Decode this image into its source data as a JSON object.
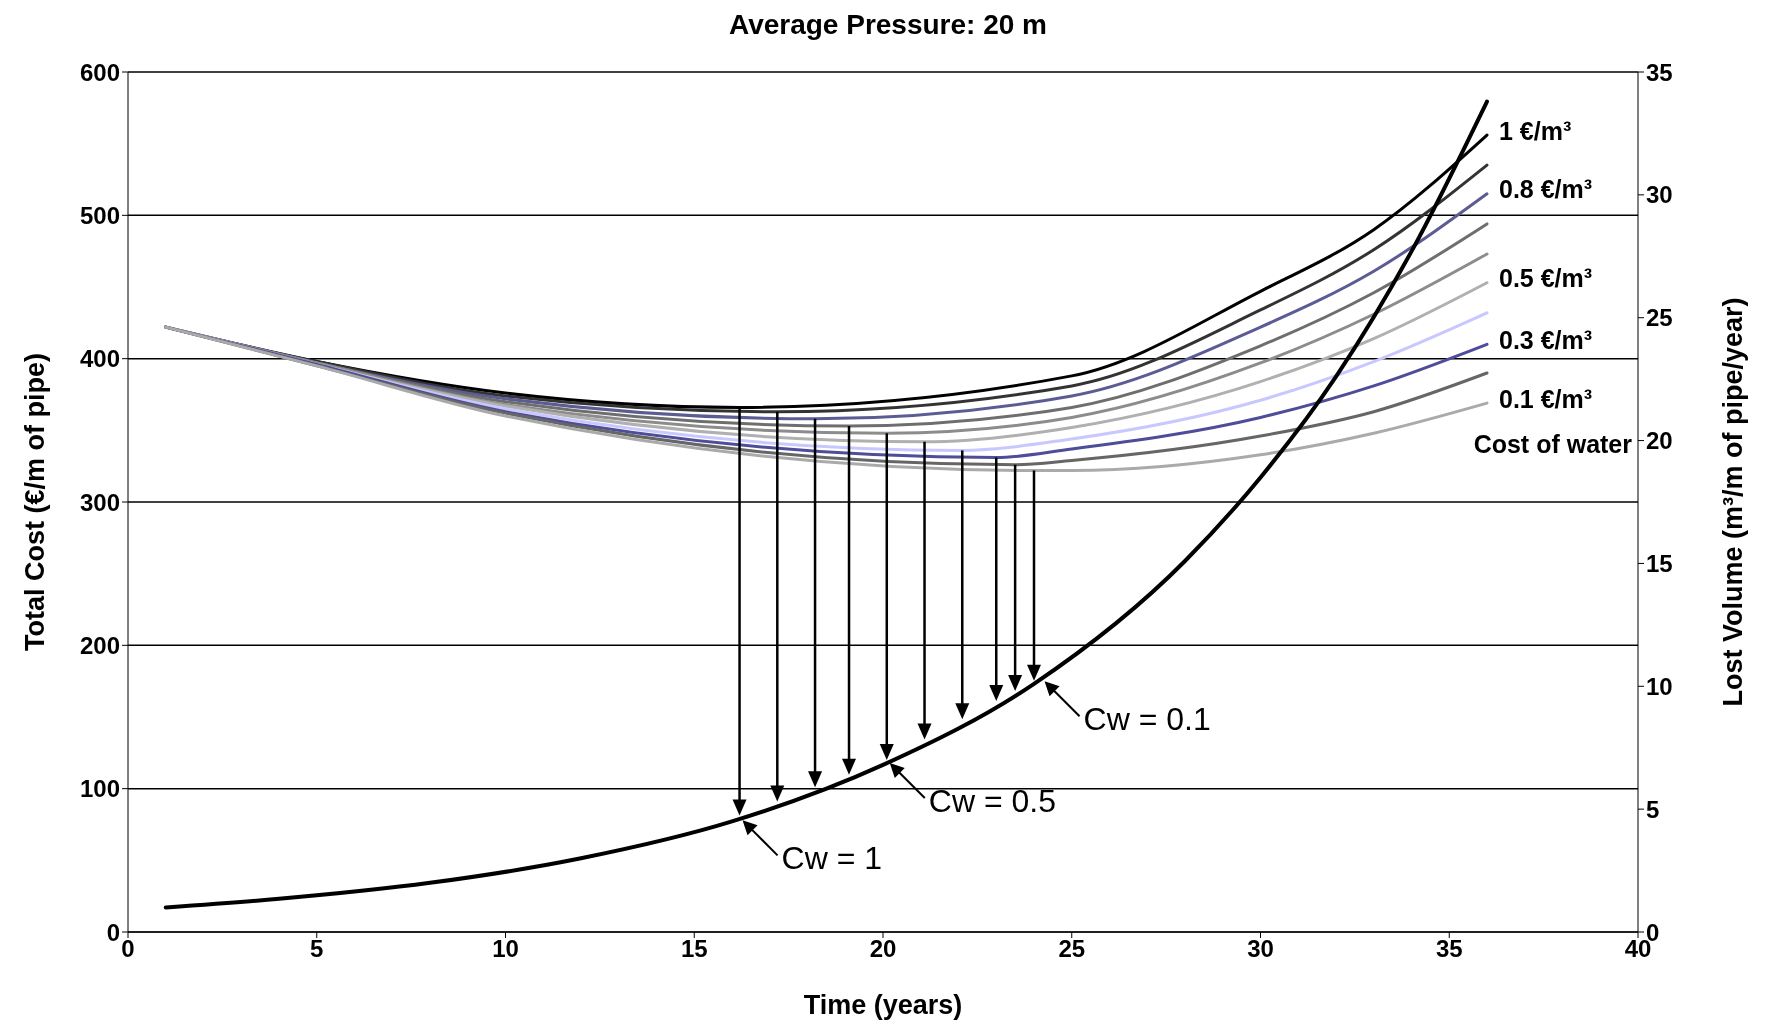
{
  "chart_data": {
    "type": "line",
    "title": "Average Pressure: 20 m",
    "xlabel": "Time (years)",
    "ylabel": "Total Cost (€/m of pipe)",
    "y2label": "Lost Volume (m³/m of pipe/year)",
    "xlim": [
      0,
      40
    ],
    "xticks": [
      0,
      5,
      10,
      15,
      20,
      25,
      30,
      35,
      40
    ],
    "ylim": [
      0,
      600
    ],
    "yticks": [
      0,
      100,
      200,
      300,
      400,
      500,
      600
    ],
    "y2lim": [
      0,
      35
    ],
    "y2ticks": [
      0,
      5,
      10,
      15,
      20,
      25,
      30,
      35
    ],
    "grid": "y",
    "series": [
      {
        "name": "1 €/m³",
        "color": "#000000",
        "x": [
          1,
          5,
          10,
          16.2,
          25,
          30,
          33,
          36
        ],
        "values": [
          422,
          398,
          376,
          366,
          388,
          447,
          490,
          556
        ]
      },
      {
        "color": "#333333",
        "x": [
          1,
          5,
          10,
          17.2,
          25,
          30,
          33,
          36
        ],
        "values": [
          422,
          398,
          374,
          363,
          381,
          434,
          476,
          535
        ]
      },
      {
        "name": "0.8 €/m³",
        "color": "#5c5c94",
        "x": [
          1,
          5,
          10,
          18.2,
          25,
          30,
          33,
          36
        ],
        "values": [
          422,
          397,
          372,
          358,
          374,
          422,
          461,
          515
        ]
      },
      {
        "color": "#6e6e6e",
        "x": [
          1,
          5,
          10,
          19.1,
          25,
          30,
          33,
          36
        ],
        "values": [
          422,
          397,
          370,
          353,
          366,
          409,
          446,
          494
        ]
      },
      {
        "color": "#8c8c8c",
        "x": [
          1,
          5,
          10,
          20.1,
          25,
          30,
          33,
          36
        ],
        "values": [
          422,
          397,
          368,
          348,
          359,
          397,
          431,
          473
        ]
      },
      {
        "name": "0.5 €/m³",
        "color": "#b0b0b0",
        "x": [
          1,
          5,
          10,
          21.1,
          25,
          30,
          33,
          36
        ],
        "values": [
          422,
          396,
          367,
          342,
          352,
          384,
          414,
          453
        ]
      },
      {
        "color": "#c8c8ff",
        "x": [
          1,
          5,
          10,
          22.1,
          25,
          30,
          33,
          36
        ],
        "values": [
          422,
          396,
          365,
          336,
          344,
          371,
          398,
          432
        ]
      },
      {
        "name": "0.3 €/m³",
        "color": "#4d4d99",
        "x": [
          1,
          5,
          10,
          23.0,
          25,
          30,
          33,
          36
        ],
        "values": [
          422,
          396,
          363,
          331,
          337,
          359,
          381,
          410
        ]
      },
      {
        "color": "#666666",
        "x": [
          1,
          5,
          10,
          23.5,
          25,
          30,
          33,
          36
        ],
        "values": [
          422,
          395,
          362,
          326,
          329,
          346,
          363,
          390
        ]
      },
      {
        "name": "0.1 €/m³",
        "color": "#aaaaaa",
        "x": [
          1,
          5,
          10,
          24.0,
          25,
          30,
          33,
          36
        ],
        "values": [
          422,
          395,
          360,
          322,
          322,
          333,
          348,
          369
        ]
      },
      {
        "color": "#000000",
        "axis": "y2",
        "x": [
          1,
          4,
          8,
          12,
          16,
          20,
          24,
          28,
          30,
          32,
          34,
          36
        ],
        "values": [
          1.0,
          1.35,
          2.0,
          3.0,
          4.5,
          6.8,
          10.1,
          15.1,
          18.5,
          22.6,
          27.7,
          33.8
        ]
      }
    ],
    "annotations": [
      "Cost of water",
      {
        "text": "Cw = 1",
        "x": 16.2,
        "y": 80
      },
      {
        "text": "Cw = 0.5",
        "x": 20.1,
        "y": 120
      },
      {
        "text": "Cw = 0.1",
        "x": 24.2,
        "y": 177
      }
    ]
  }
}
